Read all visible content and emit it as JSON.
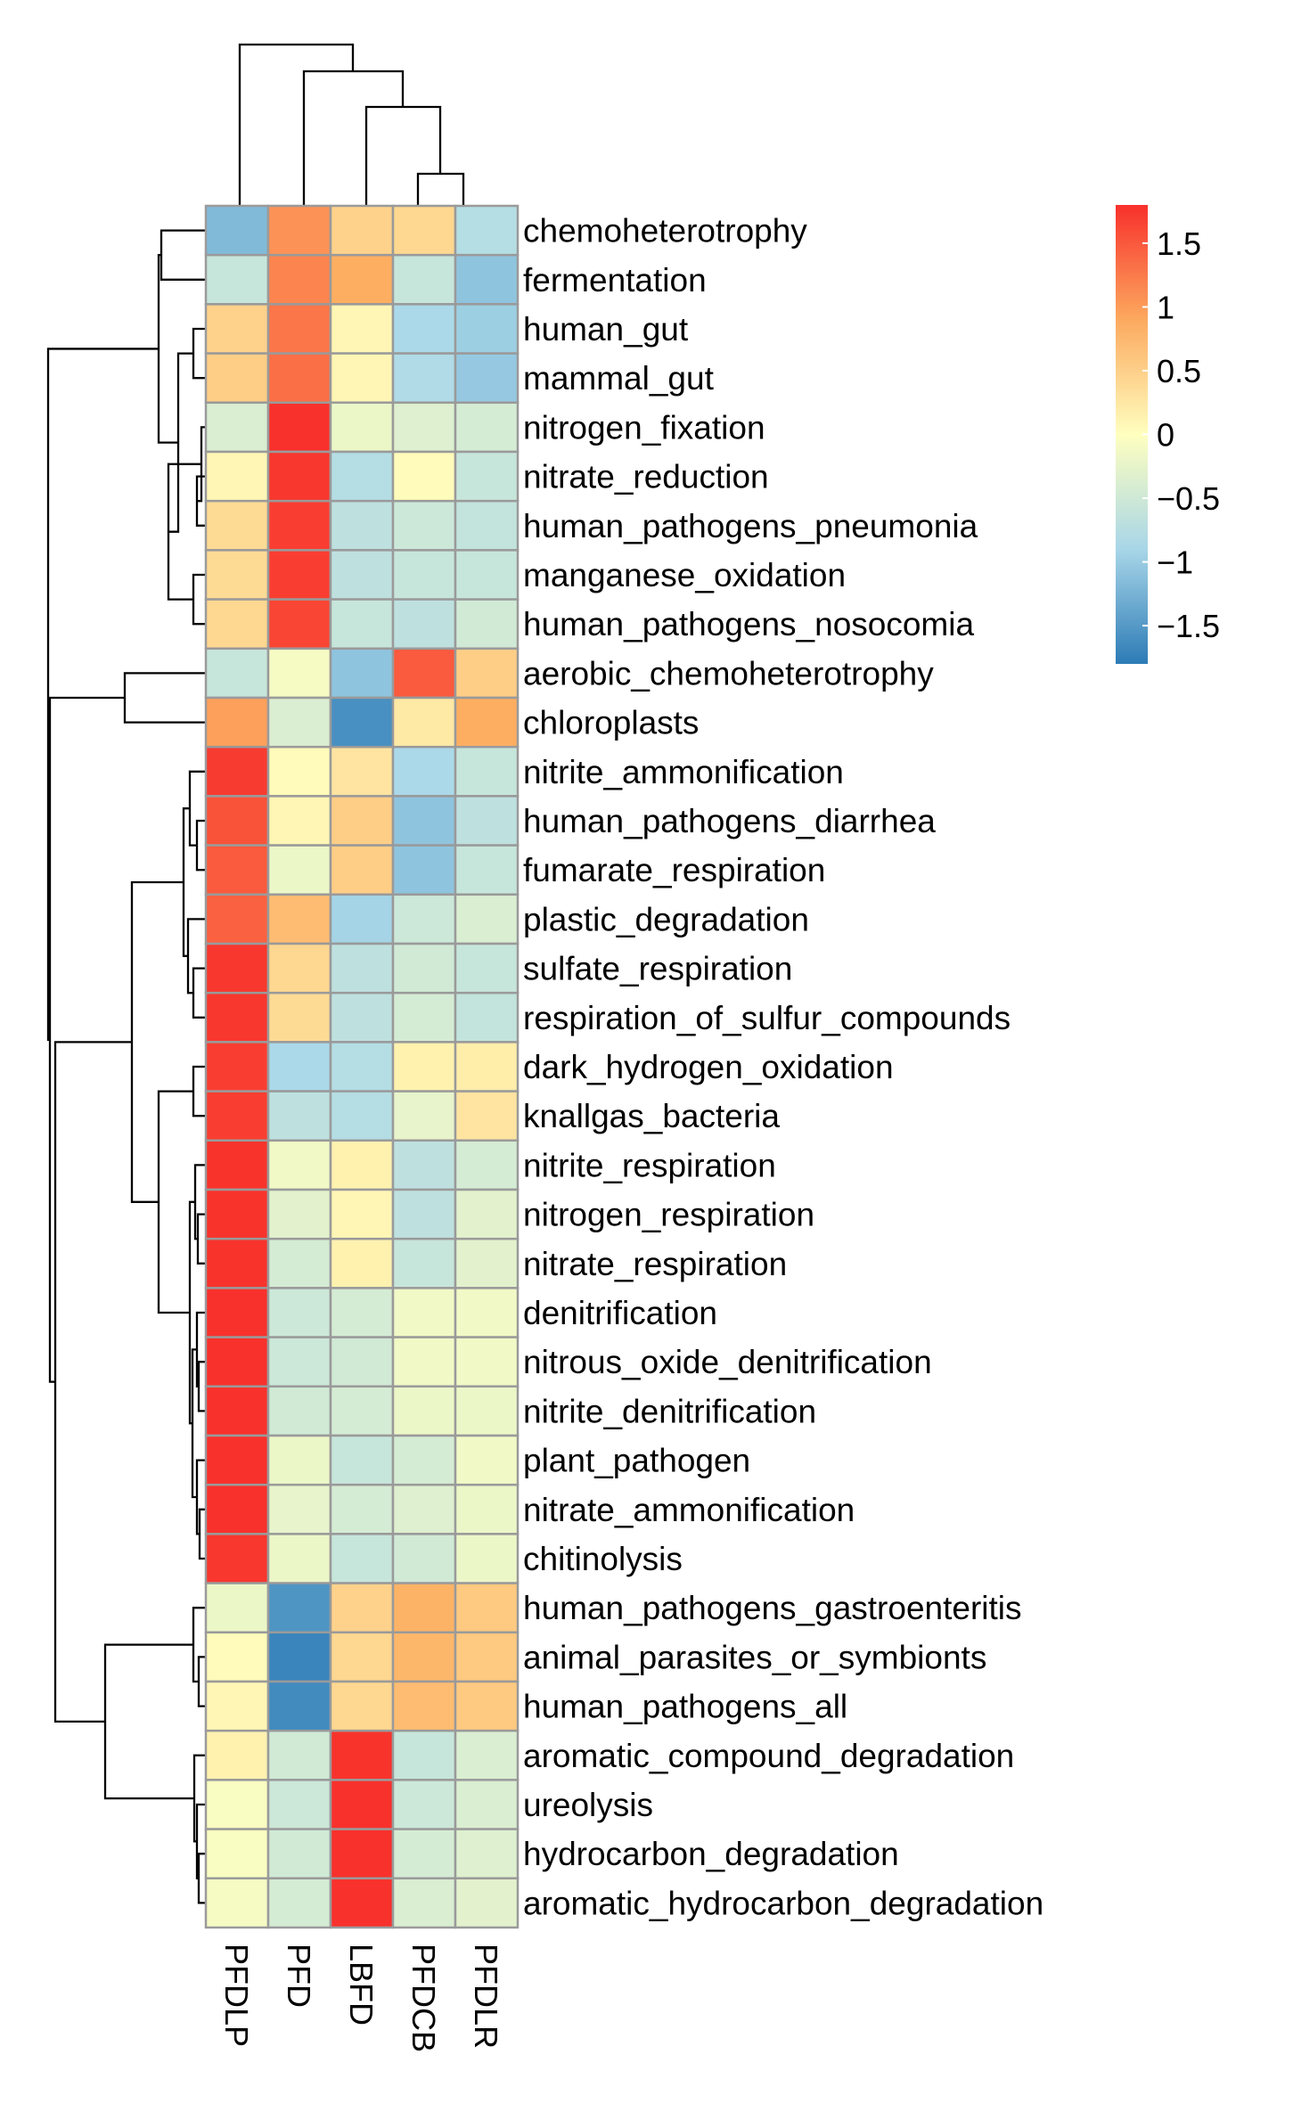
{
  "chart_data": {
    "type": "heatmap",
    "title": "",
    "columns": [
      "PFDLP",
      "PFD",
      "LBFD",
      "PFDCB",
      "PFDLR"
    ],
    "rows": [
      "chemoheterotrophy",
      "fermentation",
      "human_gut",
      "mammal_gut",
      "nitrogen_fixation",
      "nitrate_reduction",
      "human_pathogens_pneumonia",
      "manganese_oxidation",
      "human_pathogens_nosocomia",
      "aerobic_chemoheterotrophy",
      "chloroplasts",
      "nitrite_ammonification",
      "human_pathogens_diarrhea",
      "fumarate_respiration",
      "plastic_degradation",
      "sulfate_respiration",
      "respiration_of_sulfur_compounds",
      "dark_hydrogen_oxidation",
      "knallgas_bacteria",
      "nitrite_respiration",
      "nitrogen_respiration",
      "nitrate_respiration",
      "denitrification",
      "nitrous_oxide_denitrification",
      "nitrite_denitrification",
      "plant_pathogen",
      "nitrate_ammonification",
      "chitinolysis",
      "human_pathogens_gastroenteritis",
      "animal_parasites_or_symbionts",
      "human_pathogens_all",
      "aromatic_compound_degradation",
      "ureolysis",
      "hydrocarbon_degradation",
      "aromatic_hydrocarbon_degradation"
    ],
    "values": [
      [
        -1.2,
        1.1,
        0.5,
        0.45,
        -0.8
      ],
      [
        -0.6,
        1.2,
        0.9,
        -0.6,
        -1.1
      ],
      [
        0.5,
        1.3,
        0.1,
        -0.9,
        -1.0
      ],
      [
        0.55,
        1.35,
        0.1,
        -0.85,
        -1.05
      ],
      [
        -0.4,
        1.79,
        -0.2,
        -0.35,
        -0.45
      ],
      [
        0.1,
        1.75,
        -0.8,
        0.05,
        -0.6
      ],
      [
        0.4,
        1.7,
        -0.7,
        -0.55,
        -0.65
      ],
      [
        0.4,
        1.7,
        -0.7,
        -0.6,
        -0.6
      ],
      [
        0.45,
        1.65,
        -0.6,
        -0.7,
        -0.5
      ],
      [
        -0.6,
        -0.1,
        -1.1,
        1.5,
        0.55
      ],
      [
        1.0,
        -0.4,
        -1.6,
        0.25,
        0.9
      ],
      [
        1.72,
        0.05,
        0.3,
        -0.9,
        -0.6
      ],
      [
        1.55,
        0.1,
        0.55,
        -1.1,
        -0.7
      ],
      [
        1.5,
        -0.2,
        0.55,
        -1.1,
        -0.6
      ],
      [
        1.45,
        0.75,
        -0.95,
        -0.55,
        -0.4
      ],
      [
        1.75,
        0.45,
        -0.7,
        -0.5,
        -0.6
      ],
      [
        1.75,
        0.4,
        -0.7,
        -0.45,
        -0.65
      ],
      [
        1.7,
        -0.9,
        -0.8,
        0.15,
        0.2
      ],
      [
        1.7,
        -0.7,
        -0.8,
        -0.25,
        0.3
      ],
      [
        1.78,
        -0.15,
        0.15,
        -0.7,
        -0.45
      ],
      [
        1.78,
        -0.3,
        0.1,
        -0.7,
        -0.3
      ],
      [
        1.78,
        -0.45,
        0.15,
        -0.6,
        -0.3
      ],
      [
        1.79,
        -0.55,
        -0.45,
        -0.15,
        -0.15
      ],
      [
        1.79,
        -0.55,
        -0.5,
        -0.15,
        -0.15
      ],
      [
        1.79,
        -0.5,
        -0.45,
        -0.2,
        -0.2
      ],
      [
        1.79,
        -0.2,
        -0.6,
        -0.45,
        -0.15
      ],
      [
        1.79,
        -0.25,
        -0.45,
        -0.35,
        -0.2
      ],
      [
        1.75,
        -0.2,
        -0.6,
        -0.5,
        -0.2
      ],
      [
        -0.2,
        -1.55,
        0.5,
        0.85,
        0.6
      ],
      [
        0.05,
        -1.7,
        0.45,
        0.8,
        0.6
      ],
      [
        0.1,
        -1.65,
        0.45,
        0.75,
        0.6
      ],
      [
        0.15,
        -0.5,
        1.78,
        -0.6,
        -0.4
      ],
      [
        -0.05,
        -0.55,
        1.79,
        -0.55,
        -0.4
      ],
      [
        -0.05,
        -0.5,
        1.79,
        -0.45,
        -0.35
      ],
      [
        -0.1,
        -0.45,
        1.79,
        -0.4,
        -0.3
      ]
    ],
    "color_scale": {
      "min": -1.8,
      "max": 1.8,
      "low_color": "#2c7bb6",
      "mid_color": "#ffffbf",
      "high_color": "#f8302b"
    },
    "legend": {
      "position": "top-right",
      "ticks": [
        1.5,
        1,
        0.5,
        0,
        -0.5,
        -1,
        -1.5
      ],
      "tick_labels": [
        "1.5",
        "1",
        "0.5",
        "0",
        "−0.5",
        "−1",
        "−1.5"
      ]
    },
    "row_dendrogram": true,
    "column_dendrogram": true,
    "xlabel": "",
    "ylabel": ""
  }
}
